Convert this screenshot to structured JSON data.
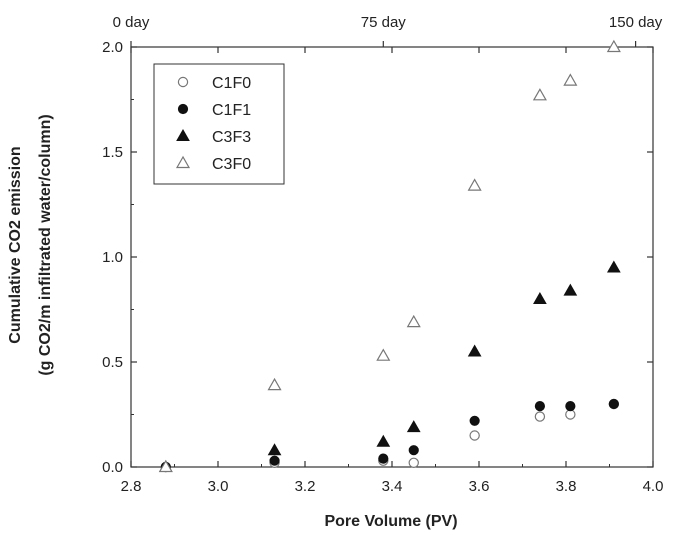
{
  "chart_data": {
    "type": "scatter",
    "xlabel": "Pore Volume (PV)",
    "ylabel_line1": "Cumulative CO2 emission",
    "ylabel_line2": "(g CO2/m infiltrated water/column)",
    "xlim": [
      2.8,
      4.0
    ],
    "ylim": [
      0.0,
      2.0
    ],
    "x_ticks": [
      "2.8",
      "3.0",
      "3.2",
      "3.4",
      "3.6",
      "3.8",
      "4.0"
    ],
    "y_ticks": [
      "0.0",
      "0.5",
      "1.0",
      "1.5",
      "2.0"
    ],
    "top_axis": {
      "ticks": [
        {
          "x": 2.8,
          "label": "0 day"
        },
        {
          "x": 3.38,
          "label": "75 day"
        },
        {
          "x": 3.96,
          "label": "150 day"
        }
      ]
    },
    "legend_position": "top-left",
    "grid": false,
    "series": [
      {
        "name": "C1F0",
        "marker": "circle-open",
        "x": [
          2.88,
          3.13,
          3.38,
          3.45,
          3.59,
          3.74,
          3.81,
          3.91
        ],
        "y": [
          0.0,
          0.02,
          0.03,
          0.02,
          0.15,
          0.24,
          0.25,
          0.3
        ]
      },
      {
        "name": "C1F1",
        "marker": "circle-filled",
        "x": [
          2.88,
          3.13,
          3.38,
          3.45,
          3.59,
          3.74,
          3.81,
          3.91
        ],
        "y": [
          0.0,
          0.03,
          0.04,
          0.08,
          0.22,
          0.29,
          0.29,
          0.3
        ]
      },
      {
        "name": "C3F3",
        "marker": "triangle-filled",
        "x": [
          2.88,
          3.13,
          3.38,
          3.45,
          3.59,
          3.74,
          3.81,
          3.91
        ],
        "y": [
          0.0,
          0.08,
          0.12,
          0.19,
          0.55,
          0.8,
          0.84,
          0.95
        ]
      },
      {
        "name": "C3F0",
        "marker": "triangle-open",
        "x": [
          2.88,
          3.13,
          3.38,
          3.45,
          3.59,
          3.74,
          3.81,
          3.91
        ],
        "y": [
          0.0,
          0.39,
          0.53,
          0.69,
          1.34,
          1.77,
          1.84,
          2.0
        ]
      }
    ]
  }
}
